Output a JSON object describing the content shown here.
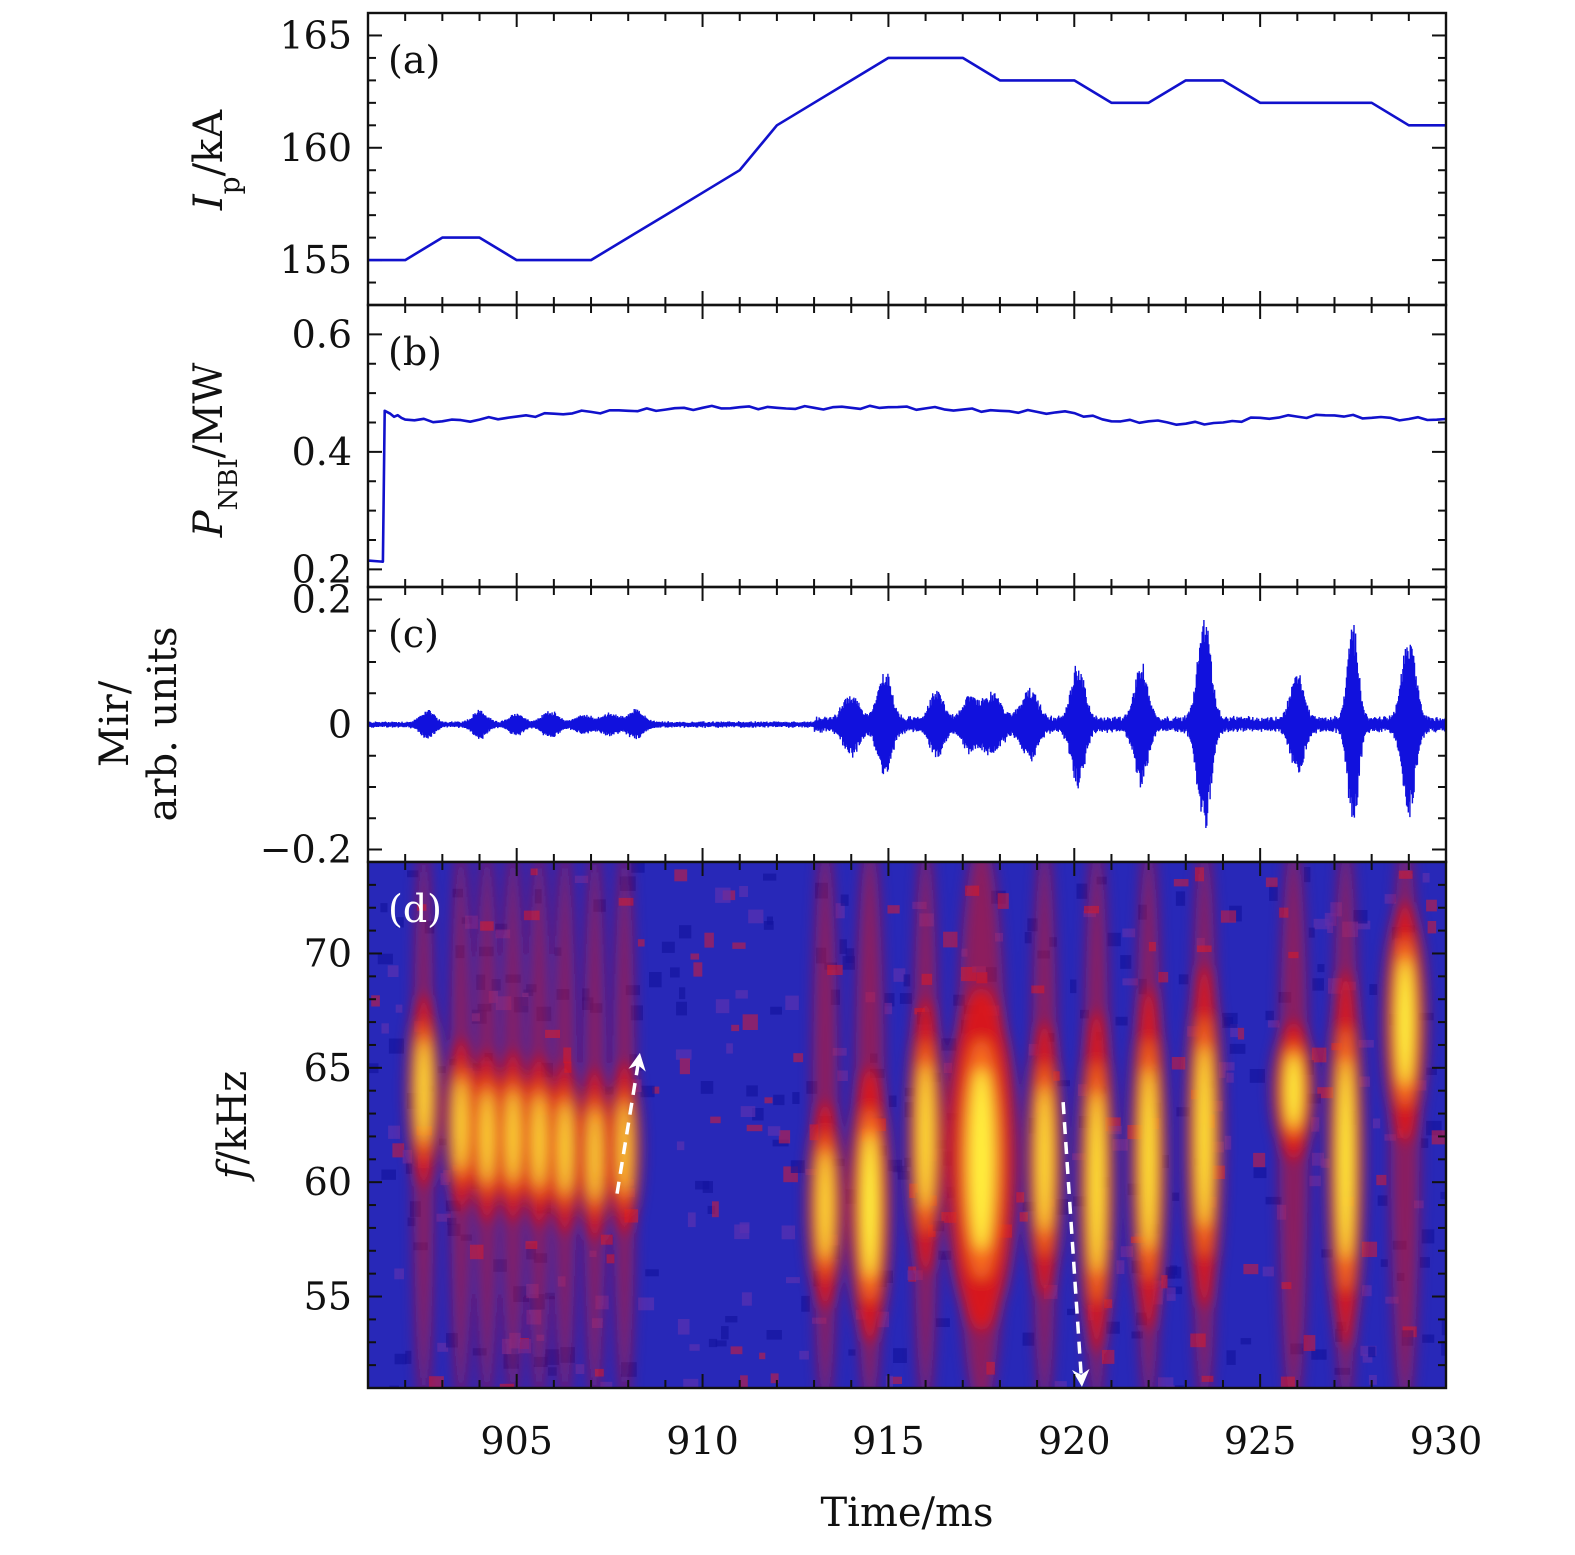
{
  "figure": {
    "x_axis": {
      "label": "Time/ms",
      "range": [
        901,
        930
      ],
      "ticks": [
        905,
        910,
        915,
        920,
        925,
        930
      ],
      "tick_labels": [
        "905",
        "910",
        "915",
        "920",
        "925",
        "930"
      ],
      "minor_step": 1
    },
    "colors": {
      "line": "#1111cc",
      "spectrogram_background": "#2828b8",
      "spectrogram_mid": "#e01818",
      "spectrogram_high": "#ffff40",
      "arrow": "#ffffff"
    }
  },
  "chart_data": [
    {
      "id": "a",
      "type": "line",
      "panel_label": "(a)",
      "ylabel": "I_p/kA",
      "ylabel_main": "I",
      "ylabel_sub": "p",
      "ylabel_rest": "/kA",
      "ylim": [
        153,
        166
      ],
      "yticks": [
        155,
        160,
        165
      ],
      "ytick_labels": [
        "155",
        "160",
        "165"
      ],
      "yminor_step": 1,
      "x": [
        901,
        902,
        903,
        904,
        905,
        906,
        907,
        908,
        909,
        910,
        911,
        912,
        913,
        914,
        915,
        916,
        917,
        918,
        919,
        920,
        921,
        922,
        923,
        924,
        925,
        926,
        927,
        928,
        929,
        930
      ],
      "y": [
        155,
        155,
        156,
        156,
        155,
        155,
        155,
        156,
        157,
        158,
        159,
        161,
        162,
        163,
        164,
        164,
        164,
        163,
        163,
        163,
        162,
        162,
        163,
        163,
        162,
        162,
        162,
        162,
        161,
        161
      ]
    },
    {
      "id": "b",
      "type": "line",
      "panel_label": "(b)",
      "ylabel": "P_NBI/MW",
      "ylabel_main": "P",
      "ylabel_sub": "NBI",
      "ylabel_rest": "/MW",
      "ylim": [
        0.17,
        0.65
      ],
      "yticks": [
        0.2,
        0.4,
        0.6
      ],
      "ytick_labels": [
        "0.2",
        "0.4",
        "0.6"
      ],
      "yminor_step": 0.05,
      "x": [
        901,
        901.4,
        901.45,
        901.6,
        902,
        903,
        904,
        905,
        906,
        907,
        908,
        909,
        910,
        911,
        912,
        913,
        914,
        915,
        916,
        917,
        918,
        919,
        920,
        921,
        922,
        923,
        924,
        925,
        926,
        927,
        928,
        929,
        930
      ],
      "y": [
        0.215,
        0.213,
        0.47,
        0.465,
        0.455,
        0.452,
        0.455,
        0.46,
        0.465,
        0.468,
        0.47,
        0.472,
        0.475,
        0.476,
        0.475,
        0.475,
        0.475,
        0.476,
        0.474,
        0.472,
        0.47,
        0.468,
        0.466,
        0.452,
        0.452,
        0.448,
        0.45,
        0.458,
        0.46,
        0.462,
        0.458,
        0.456,
        0.456
      ]
    },
    {
      "id": "c",
      "type": "line",
      "panel_label": "(c)",
      "ylabel_line1": "Mir/",
      "ylabel_line2": "arb. units",
      "ylim": [
        -0.22,
        0.22
      ],
      "yticks": [
        -0.2,
        0,
        0.2
      ],
      "ytick_labels": [
        "−0.2",
        "0",
        "0.2"
      ],
      "yminor_step": 0.05,
      "baseline_amplitude": 0.004,
      "bursts": [
        {
          "t": 902.6,
          "amp": 0.02,
          "width": 0.25
        },
        {
          "t": 904.0,
          "amp": 0.02,
          "width": 0.25
        },
        {
          "t": 905.0,
          "amp": 0.015,
          "width": 0.25
        },
        {
          "t": 905.9,
          "amp": 0.018,
          "width": 0.3
        },
        {
          "t": 906.8,
          "amp": 0.012,
          "width": 0.3
        },
        {
          "t": 907.5,
          "amp": 0.015,
          "width": 0.3
        },
        {
          "t": 908.2,
          "amp": 0.02,
          "width": 0.3
        },
        {
          "t": 914.0,
          "amp": 0.04,
          "width": 0.3
        },
        {
          "t": 914.9,
          "amp": 0.08,
          "width": 0.25
        },
        {
          "t": 916.3,
          "amp": 0.045,
          "width": 0.25
        },
        {
          "t": 917.2,
          "amp": 0.035,
          "width": 0.3
        },
        {
          "t": 917.8,
          "amp": 0.04,
          "width": 0.35
        },
        {
          "t": 918.8,
          "amp": 0.05,
          "width": 0.3
        },
        {
          "t": 920.1,
          "amp": 0.09,
          "width": 0.25
        },
        {
          "t": 921.8,
          "amp": 0.09,
          "width": 0.25
        },
        {
          "t": 923.5,
          "amp": 0.165,
          "width": 0.25
        },
        {
          "t": 926.0,
          "amp": 0.075,
          "width": 0.25
        },
        {
          "t": 927.5,
          "amp": 0.155,
          "width": 0.2
        },
        {
          "t": 929.0,
          "amp": 0.14,
          "width": 0.25
        }
      ]
    },
    {
      "id": "d",
      "type": "heatmap",
      "panel_label": "(d)",
      "ylabel": "f/kHz",
      "ylabel_main": "f",
      "ylabel_rest": "/kHz",
      "ylim": [
        51,
        74
      ],
      "yticks": [
        55,
        60,
        65,
        70
      ],
      "ytick_labels": [
        "55",
        "60",
        "65",
        "70"
      ],
      "yminor_step": 1,
      "features": [
        {
          "t": 902.5,
          "f": 64,
          "df": 2.8,
          "dt": 0.25,
          "intensity": 0.9
        },
        {
          "t": 903.5,
          "f": 62.5,
          "df": 2.5,
          "dt": 0.25,
          "intensity": 0.85
        },
        {
          "t": 904.2,
          "f": 62,
          "df": 2.5,
          "dt": 0.25,
          "intensity": 0.85
        },
        {
          "t": 904.9,
          "f": 62,
          "df": 2.5,
          "dt": 0.25,
          "intensity": 0.85
        },
        {
          "t": 905.6,
          "f": 61.8,
          "df": 2.5,
          "dt": 0.25,
          "intensity": 0.85
        },
        {
          "t": 906.3,
          "f": 61.5,
          "df": 2.5,
          "dt": 0.25,
          "intensity": 0.85
        },
        {
          "t": 907.1,
          "f": 61.2,
          "df": 2.5,
          "dt": 0.25,
          "intensity": 0.8
        },
        {
          "t": 907.9,
          "f": 61.5,
          "df": 2.5,
          "dt": 0.25,
          "intensity": 0.75
        },
        {
          "t": 913.3,
          "f": 59,
          "df": 3,
          "dt": 0.3,
          "intensity": 0.85
        },
        {
          "t": 914.5,
          "f": 59,
          "df": 4,
          "dt": 0.35,
          "intensity": 1.0
        },
        {
          "t": 916.0,
          "f": 62,
          "df": 4,
          "dt": 0.3,
          "intensity": 0.9
        },
        {
          "t": 917.5,
          "f": 61,
          "df": 5,
          "dt": 0.6,
          "intensity": 0.9
        },
        {
          "t": 919.2,
          "f": 61,
          "df": 4,
          "dt": 0.3,
          "intensity": 0.9
        },
        {
          "t": 920.6,
          "f": 60,
          "df": 5,
          "dt": 0.3,
          "intensity": 0.95
        },
        {
          "t": 922.0,
          "f": 61,
          "df": 5,
          "dt": 0.3,
          "intensity": 0.95
        },
        {
          "t": 923.5,
          "f": 62,
          "df": 5,
          "dt": 0.3,
          "intensity": 0.95
        },
        {
          "t": 925.9,
          "f": 64,
          "df": 2,
          "dt": 0.35,
          "intensity": 0.95
        },
        {
          "t": 927.3,
          "f": 61,
          "df": 5.5,
          "dt": 0.3,
          "intensity": 1.0
        },
        {
          "t": 928.9,
          "f": 67,
          "df": 3.5,
          "dt": 0.35,
          "intensity": 1.0
        }
      ],
      "arrows": [
        {
          "from": [
            907.7,
            59.5
          ],
          "to": [
            908.3,
            65.5
          ]
        },
        {
          "from": [
            919.7,
            63.5
          ],
          "to": [
            920.2,
            51.2
          ]
        }
      ]
    }
  ]
}
